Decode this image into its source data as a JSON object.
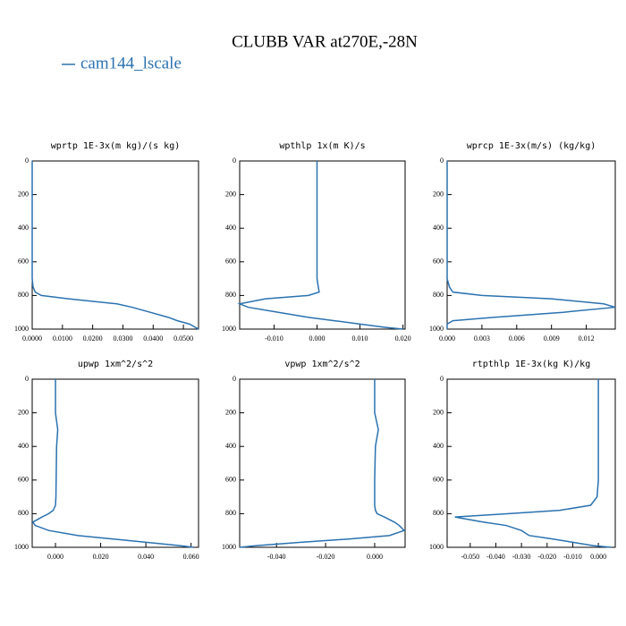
{
  "title": "CLUBB VAR at270E,-28N",
  "chart_data": [
    {
      "type": "line",
      "title": "wprtp  1E-3x(m kg)/(s kg)",
      "y": [
        0,
        200,
        300,
        400,
        600,
        700,
        750,
        780,
        800,
        820,
        850,
        870,
        900,
        930,
        950,
        970,
        990,
        1000
      ],
      "series": [
        {
          "name": "cam144_lscale",
          "color": "#2a72b0",
          "values": [
            0,
            0,
            0,
            0,
            0,
            0,
            0.0003,
            0.001,
            0.003,
            0.012,
            0.028,
            0.033,
            0.039,
            0.045,
            0.048,
            0.052,
            0.054,
            0.055
          ]
        }
      ],
      "xlim": [
        0,
        0.055
      ],
      "ylim": [
        1000,
        0
      ],
      "xticks": [
        {
          "value": 0,
          "label": "0.0000"
        },
        {
          "value": 0.01,
          "label": "0.0100"
        },
        {
          "value": 0.02,
          "label": "0.0200"
        },
        {
          "value": 0.03,
          "label": "0.0300"
        },
        {
          "value": 0.04,
          "label": "0.0400"
        },
        {
          "value": 0.05,
          "label": "0.0500"
        }
      ],
      "yticks": [
        0,
        200,
        400,
        600,
        800,
        1000
      ]
    },
    {
      "type": "line",
      "title": "wpthlp  1x(m K)/s",
      "y": [
        0,
        200,
        300,
        400,
        600,
        700,
        750,
        780,
        800,
        820,
        850,
        870,
        900,
        930,
        950,
        970,
        990,
        1000
      ],
      "series": [
        {
          "name": "cam144_lscale",
          "color": "#2a72b0",
          "values": [
            0,
            0,
            0,
            0,
            0,
            0,
            0.0003,
            0.0005,
            -0.002,
            -0.012,
            -0.018,
            -0.016,
            -0.009,
            -0.002,
            0.004,
            0.01,
            0.016,
            0.02
          ]
        }
      ],
      "xlim": [
        -0.018,
        0.0205
      ],
      "ylim": [
        1000,
        0
      ],
      "xticks": [
        {
          "value": -0.01,
          "label": "-0.010"
        },
        {
          "value": 0,
          "label": "0.000"
        },
        {
          "value": 0.01,
          "label": "0.010"
        },
        {
          "value": 0.02,
          "label": "0.020"
        }
      ],
      "yticks": [
        0,
        200,
        400,
        600,
        800,
        1000
      ]
    },
    {
      "type": "line",
      "title": "wprcp  1E-3x(m/s) (kg/kg)",
      "y": [
        0,
        200,
        300,
        400,
        600,
        700,
        750,
        780,
        800,
        820,
        850,
        870,
        900,
        930,
        950,
        970,
        990,
        1000
      ],
      "series": [
        {
          "name": "cam144_lscale",
          "color": "#2a72b0",
          "values": [
            0,
            0,
            0,
            0,
            0,
            0,
            0.0002,
            0.0005,
            0.003,
            0.009,
            0.0135,
            0.0145,
            0.01,
            0.004,
            0.0005,
            0,
            0,
            0
          ]
        }
      ],
      "xlim": [
        0,
        0.0145
      ],
      "ylim": [
        1000,
        0
      ],
      "xticks": [
        {
          "value": 0,
          "label": "0.000"
        },
        {
          "value": 0.003,
          "label": "0.003"
        },
        {
          "value": 0.006,
          "label": "0.006"
        },
        {
          "value": 0.009,
          "label": "0.009"
        },
        {
          "value": 0.012,
          "label": "0.012"
        }
      ],
      "yticks": [
        0,
        200,
        400,
        600,
        800,
        1000
      ]
    },
    {
      "type": "line",
      "title": "upwp  1xm^2/s^2",
      "y": [
        0,
        200,
        300,
        400,
        600,
        700,
        750,
        780,
        800,
        820,
        850,
        870,
        900,
        930,
        950,
        970,
        990,
        1000
      ],
      "series": [
        {
          "name": "cam144_lscale",
          "color": "#2a72b0",
          "values": [
            0,
            0,
            0.001,
            0.0005,
            0.0003,
            0.0002,
            0,
            -0.001,
            -0.003,
            -0.006,
            -0.01,
            -0.009,
            -0.003,
            0.01,
            0.025,
            0.04,
            0.055,
            0.061
          ]
        }
      ],
      "xlim": [
        -0.0103,
        0.0633
      ],
      "ylim": [
        1000,
        0
      ],
      "xticks": [
        {
          "value": 0,
          "label": "0.000"
        },
        {
          "value": 0.02,
          "label": "0.020"
        },
        {
          "value": 0.04,
          "label": "0.040"
        },
        {
          "value": 0.06,
          "label": "0.060"
        }
      ],
      "yticks": [
        0,
        200,
        400,
        600,
        800,
        1000
      ]
    },
    {
      "type": "line",
      "title": "vpwp  1xm^2/s^2",
      "y": [
        0,
        200,
        300,
        400,
        600,
        700,
        750,
        780,
        800,
        820,
        850,
        870,
        900,
        930,
        950,
        970,
        990,
        1000
      ],
      "series": [
        {
          "name": "cam144_lscale",
          "color": "#2a72b0",
          "values": [
            0,
            0,
            0.0015,
            0.0003,
            0,
            0,
            0,
            0.0003,
            0.001,
            0.004,
            0.008,
            0.01,
            0.012,
            0.006,
            -0.01,
            -0.03,
            -0.048,
            -0.055
          ]
        }
      ],
      "xlim": [
        -0.055,
        0.0124
      ],
      "ylim": [
        1000,
        0
      ],
      "xticks": [
        {
          "value": -0.04,
          "label": "-0.040"
        },
        {
          "value": -0.02,
          "label": "-0.020"
        },
        {
          "value": 0,
          "label": "0.000"
        }
      ],
      "yticks": [
        0,
        200,
        400,
        600,
        800,
        1000
      ]
    },
    {
      "type": "line",
      "title": "rtpthlp  1E-3x(kg K)/kg",
      "y": [
        0,
        200,
        300,
        400,
        600,
        700,
        750,
        780,
        800,
        820,
        850,
        870,
        900,
        930,
        950,
        970,
        990,
        1000
      ],
      "series": [
        {
          "name": "cam144_lscale",
          "color": "#2a72b0",
          "values": [
            0,
            0,
            0,
            0,
            0,
            -0.0005,
            -0.003,
            -0.015,
            -0.035,
            -0.056,
            -0.045,
            -0.036,
            -0.03,
            -0.027,
            -0.018,
            -0.01,
            -0.002,
            0.005
          ]
        }
      ],
      "xlim": [
        -0.059,
        0.0066
      ],
      "ylim": [
        1000,
        0
      ],
      "xticks": [
        {
          "value": -0.05,
          "label": "-0.050"
        },
        {
          "value": -0.04,
          "label": "-0.040"
        },
        {
          "value": -0.03,
          "label": "-0.030"
        },
        {
          "value": -0.02,
          "label": "-0.020"
        },
        {
          "value": -0.01,
          "label": "-0.010"
        },
        {
          "value": 0,
          "label": "0.000"
        }
      ],
      "yticks": [
        0,
        200,
        400,
        600,
        800,
        1000
      ]
    }
  ]
}
